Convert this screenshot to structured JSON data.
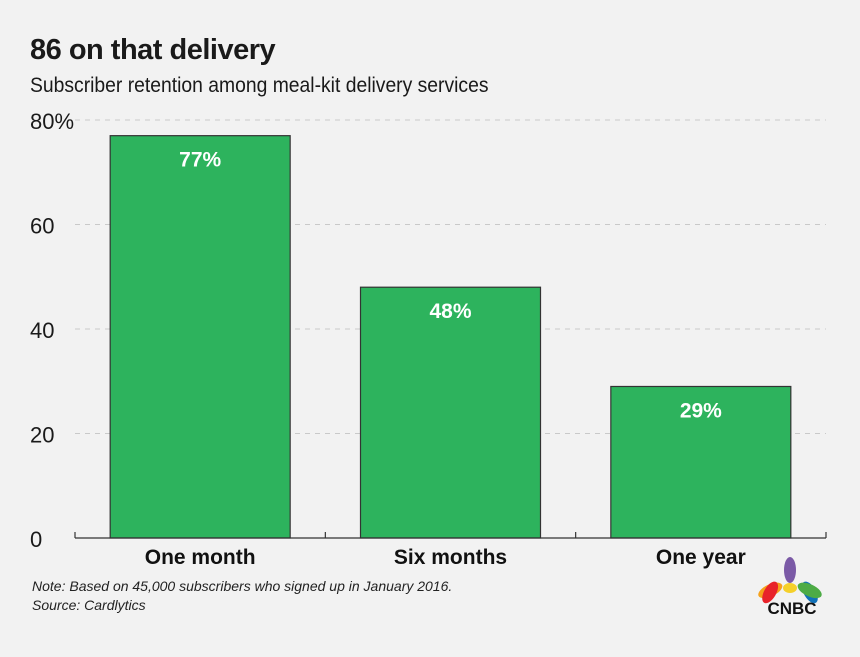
{
  "header": {
    "title": "86 on that delivery",
    "subtitle": "Subscriber retention among meal-kit delivery services"
  },
  "chart_data": {
    "type": "bar",
    "title": "86 on that delivery",
    "subtitle": "Subscriber retention among meal-kit delivery services",
    "categories": [
      "One month",
      "Six months",
      "One year"
    ],
    "values": [
      77,
      48,
      29
    ],
    "value_labels": [
      "77%",
      "48%",
      "29%"
    ],
    "ylim": [
      0,
      80
    ],
    "yticks": [
      0,
      20,
      40,
      60,
      80
    ],
    "ytick_labels": [
      "0",
      "20",
      "40",
      "60",
      "80%"
    ],
    "xlabel": "",
    "ylabel": "",
    "grid": true,
    "bar_color": "#2db35d"
  },
  "footer": {
    "note": "Note: Based on 45,000 subscribers who signed up in January 2016.",
    "source": "Source: Cardlytics"
  },
  "logo": {
    "text": "CNBC",
    "colors": [
      "#f6a21c",
      "#e8232a",
      "#7b5aa6",
      "#1172b9",
      "#4dab45",
      "#f5d02a"
    ]
  }
}
